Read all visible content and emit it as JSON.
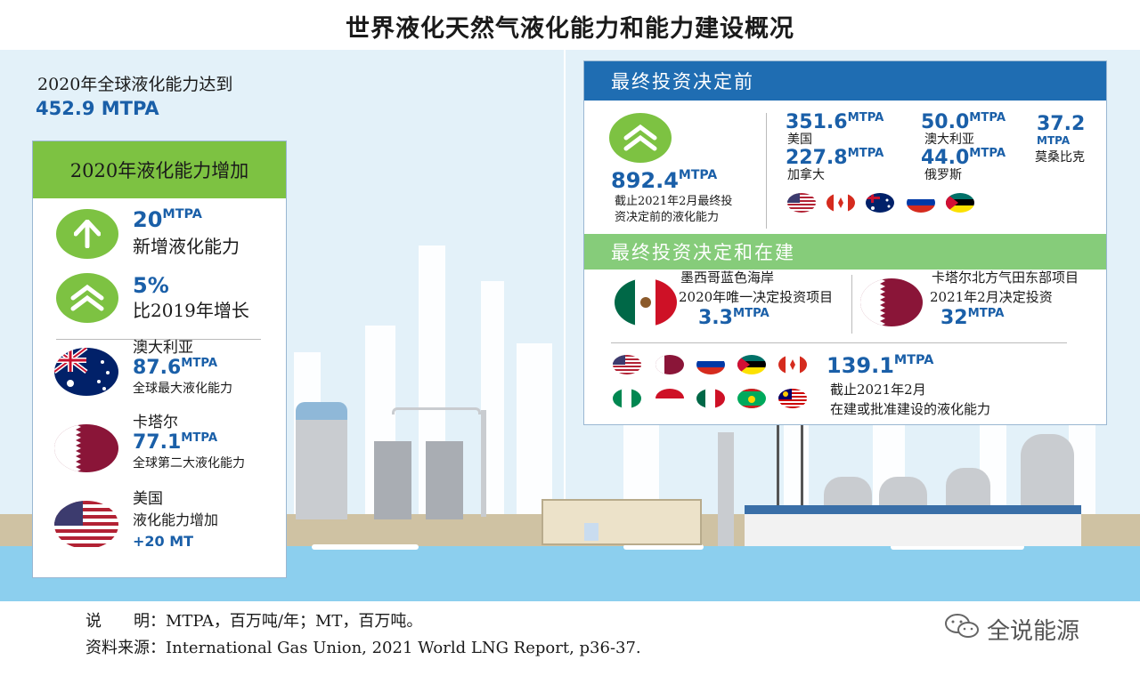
{
  "title": "世界液化天然气液化能力和能力建设概况",
  "global": {
    "label": "2020年全球液化能力达到",
    "value": "452.9 MTPA"
  },
  "left_panel": {
    "header": "2020年液化能力增加",
    "items": [
      {
        "value": "20",
        "unit": "MTPA",
        "desc": "新增液化能力",
        "icon": "arrow-up-icon"
      },
      {
        "value": "5%",
        "unit": "",
        "desc": "比2019年增长",
        "icon": "double-chevron-up-icon"
      },
      {
        "country": "澳大利亚",
        "value": "87.6",
        "unit": "MTPA",
        "desc": "全球最大液化能力",
        "icon": "australia-flag-icon"
      },
      {
        "country": "卡塔尔",
        "value": "77.1",
        "unit": "MTPA",
        "desc": "全球第二大液化能力",
        "icon": "qatar-flag-icon"
      },
      {
        "country": "美国",
        "value": "+20 MT",
        "unit": "",
        "desc": "液化能力增加",
        "icon": "usa-flag-icon"
      }
    ]
  },
  "pre_fid": {
    "header": "最终投资决定前",
    "total": "892.4",
    "total_unit": "MTPA",
    "total_desc_1": "截止2021年2月最终投",
    "total_desc_2": "资决定前的液化能力",
    "countries": [
      {
        "value": "351.6",
        "unit": "MTPA",
        "name": "美国"
      },
      {
        "value": "50.0",
        "unit": "MTPA",
        "name": "澳大利亚"
      },
      {
        "value": "37.2",
        "unit": "MTPA",
        "name": "莫桑比克"
      },
      {
        "value": "227.8",
        "unit": "MTPA",
        "name": "加拿大"
      },
      {
        "value": "44.0",
        "unit": "MTPA",
        "name": "俄罗斯"
      }
    ],
    "flags": [
      "usa-flag-icon",
      "canada-flag-icon",
      "australia-flag-icon",
      "russia-flag-icon",
      "mozambique-flag-icon"
    ]
  },
  "fid_construction": {
    "header": "最终投资决定和在建",
    "mexico": {
      "line1": "墨西哥蓝色海岸",
      "line2": "2020年唯一决定投资项目",
      "value": "3.3",
      "unit": "MTPA"
    },
    "qatar": {
      "line1": "卡塔尔北方气田东部项目",
      "line2": "2021年2月决定投资",
      "value": "32",
      "unit": "MTPA"
    },
    "total": "139.1",
    "total_unit": "MTPA",
    "total_desc_1": "截止2021年2月",
    "total_desc_2": "在建或批准建设的液化能力",
    "flags": [
      "usa-flag-icon",
      "qatar-flag-icon",
      "russia-flag-icon",
      "mozambique-flag-icon",
      "canada-flag-icon",
      "nigeria-flag-icon",
      "indonesia-flag-icon",
      "mexico-flag-icon",
      "mauritania-flag-icon",
      "malaysia-flag-icon"
    ]
  },
  "notes": {
    "line1": "说　　明：MTPA，百万吨/年；MT，百万吨。",
    "line2_prefix": "资料来源：",
    "line2_source": "International Gas Union, 2021 World LNG Report, p36-37."
  },
  "watermark": "全说能源",
  "colors": {
    "green": "#7dc242",
    "blue": "#1f6db2",
    "value_blue": "#1a5fa8",
    "light_green": "#86cc7a"
  }
}
